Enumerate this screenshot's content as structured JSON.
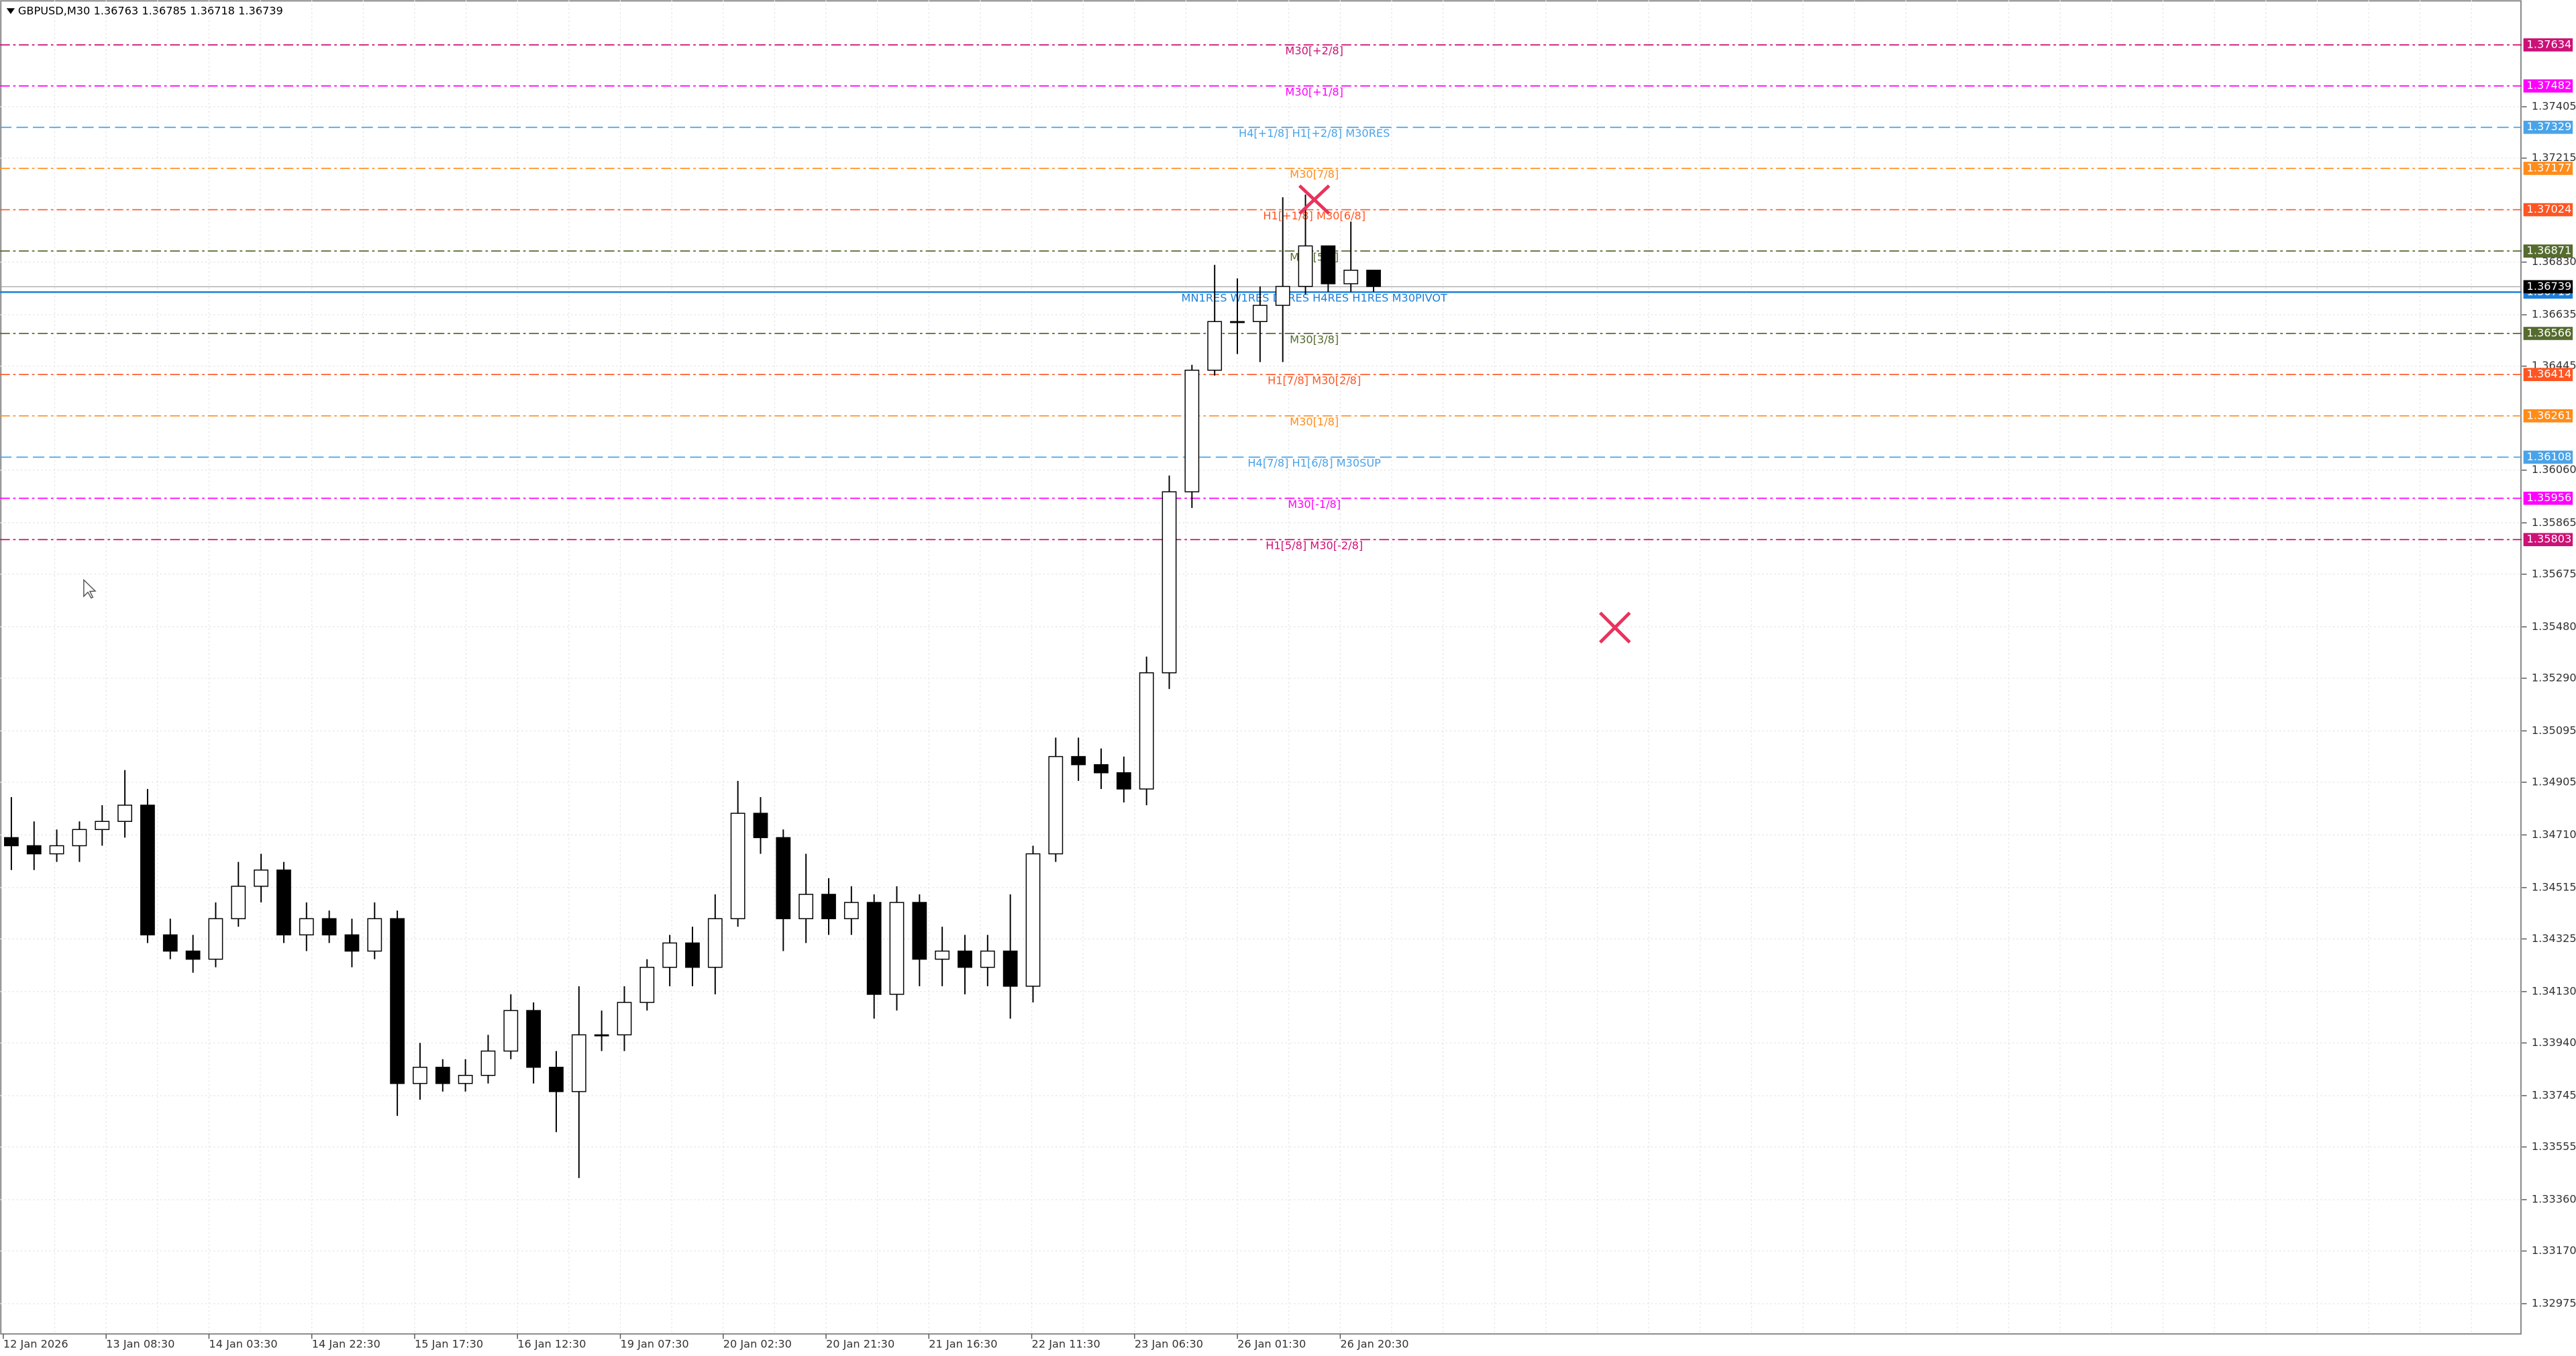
{
  "chart_data": {
    "type": "candlestick",
    "title": "GBPUSD,M30  1.36763 1.36785 1.36718 1.36739",
    "current_price": 1.36739,
    "ylim": [
      1.32863,
      1.378
    ],
    "yticks": [
      1.37405,
      1.37215,
      {
        "value": 1.3683,
        "label": "1.36830"
      },
      1.36635,
      1.36445,
      {
        "value": 1.3606,
        "label": "1.36060"
      },
      1.35865,
      1.35675,
      {
        "value": 1.3548,
        "label": "1.35480"
      },
      {
        "value": 1.3529,
        "label": "1.35290"
      },
      1.35095,
      1.34905,
      {
        "value": 1.3471,
        "label": "1.34710"
      },
      1.34515,
      1.34325,
      {
        "value": 1.3413,
        "label": "1.34130"
      },
      {
        "value": 1.3394,
        "label": "1.33940"
      },
      1.33745,
      1.33555,
      {
        "value": 1.3336,
        "label": "1.33360"
      },
      {
        "value": 1.3317,
        "label": "1.33170"
      },
      1.32975
    ],
    "xticks": [
      "12 Jan 2026",
      "13 Jan 08:30",
      "14 Jan 03:30",
      "14 Jan 22:30",
      "15 Jan 17:30",
      "16 Jan 12:30",
      "19 Jan 07:30",
      "20 Jan 02:30",
      "20 Jan 21:30",
      "21 Jan 16:30",
      "22 Jan 11:30",
      "23 Jan 06:30",
      "26 Jan 01:30",
      "26 Jan 20:30"
    ],
    "grid": true,
    "up_color": "#ffffff",
    "down_color": "#000000",
    "open": [
      1.347,
      1.3467,
      1.3464,
      1.3467,
      1.3473,
      1.3476,
      1.3482,
      1.3434,
      1.3428,
      1.3425,
      1.344,
      1.3452,
      1.3458,
      1.3434,
      1.344,
      1.3434,
      1.3428,
      1.344,
      1.3379,
      1.3385,
      1.3379,
      1.3382,
      1.3391,
      1.3406,
      1.3385,
      1.3376,
      1.3397,
      1.3397,
      1.3409,
      1.3422,
      1.3431,
      1.3422,
      1.344,
      1.3479,
      1.347,
      1.344,
      1.3449,
      1.344,
      1.3446,
      1.3412,
      1.3446,
      1.3425,
      1.3428,
      1.3422,
      1.3428,
      1.3415,
      1.3464,
      1.35,
      1.3497,
      1.3494,
      1.3488,
      1.3531,
      1.3598,
      1.3643,
      1.3661,
      1.3661,
      1.3667,
      1.3674,
      1.3689,
      1.3675,
      1.368
    ],
    "high": [
      1.3485,
      1.3476,
      1.3473,
      1.3476,
      1.3482,
      1.3495,
      1.3488,
      1.344,
      1.3434,
      1.3446,
      1.3461,
      1.3464,
      1.3461,
      1.3446,
      1.3443,
      1.344,
      1.3446,
      1.3443,
      1.3394,
      1.3388,
      1.3388,
      1.3397,
      1.3412,
      1.3409,
      1.3391,
      1.3415,
      1.3406,
      1.3415,
      1.3425,
      1.3434,
      1.3437,
      1.3449,
      1.3491,
      1.3485,
      1.3473,
      1.3464,
      1.3455,
      1.3452,
      1.3449,
      1.3452,
      1.3449,
      1.3437,
      1.3434,
      1.3434,
      1.3449,
      1.3467,
      1.3507,
      1.3507,
      1.3503,
      1.35,
      1.3537,
      1.3604,
      1.3645,
      1.3682,
      1.3677,
      1.3674,
      1.3707,
      1.3708,
      1.3689,
      1.3698,
      1.368
    ],
    "low": [
      1.3458,
      1.3458,
      1.3461,
      1.3461,
      1.3467,
      1.347,
      1.3431,
      1.3425,
      1.342,
      1.3422,
      1.3437,
      1.3446,
      1.3431,
      1.3428,
      1.3431,
      1.3422,
      1.3425,
      1.3367,
      1.3373,
      1.3376,
      1.3376,
      1.3379,
      1.3388,
      1.3379,
      1.3361,
      1.3344,
      1.3391,
      1.3391,
      1.3406,
      1.3415,
      1.3415,
      1.3412,
      1.3437,
      1.3464,
      1.3428,
      1.3431,
      1.3434,
      1.3434,
      1.3403,
      1.3406,
      1.3415,
      1.3415,
      1.3412,
      1.3415,
      1.3403,
      1.3409,
      1.3461,
      1.3491,
      1.3488,
      1.3483,
      1.3482,
      1.3525,
      1.3592,
      1.3641,
      1.3649,
      1.3646,
      1.3646,
      1.3671,
      1.3672,
      1.3672,
      1.3672
    ],
    "close": [
      1.3467,
      1.3464,
      1.3467,
      1.3473,
      1.3476,
      1.3482,
      1.3434,
      1.3428,
      1.3425,
      1.344,
      1.3452,
      1.3458,
      1.3434,
      1.344,
      1.3434,
      1.3428,
      1.344,
      1.3379,
      1.3385,
      1.3379,
      1.3382,
      1.3391,
      1.3406,
      1.3385,
      1.3376,
      1.3397,
      1.3397,
      1.3409,
      1.3422,
      1.3431,
      1.3422,
      1.344,
      1.3479,
      1.347,
      1.344,
      1.3449,
      1.344,
      1.3446,
      1.3412,
      1.3446,
      1.3425,
      1.3428,
      1.3422,
      1.3428,
      1.3415,
      1.3464,
      1.35,
      1.3497,
      1.3494,
      1.3488,
      1.3531,
      1.3598,
      1.3643,
      1.3661,
      1.3661,
      1.3667,
      1.3674,
      1.3689,
      1.3675,
      1.368,
      1.3674
    ],
    "levels": [
      {
        "value": 1.37634,
        "label": "M30[+2/8]",
        "color": "#cc1177",
        "style": "dashdot"
      },
      {
        "value": 1.37482,
        "label": "M30[+1/8]",
        "color": "#ff00ff",
        "style": "dashdot"
      },
      {
        "value": 1.37329,
        "label": "H4[+1/8] H1[+2/8] M30RES",
        "color": "#4aa3e8",
        "style": "dash"
      },
      {
        "value": 1.37177,
        "label": "M30[7/8]",
        "color": "#ff8c1a",
        "style": "dashdot"
      },
      {
        "value": 1.37024,
        "label": "H1[+1/8] M30[6/8]",
        "color": "#ff5522",
        "style": "dashdot"
      },
      {
        "value": 1.36871,
        "label": "M30[5/8]",
        "color": "#556b2f",
        "style": "dashdot"
      },
      {
        "value": 1.36719,
        "label": "MN1RES W1RES D1RES H4RES H1RES M30PIVOT",
        "color": "#1e7fd8",
        "style": "solid"
      },
      {
        "value": 1.36566,
        "label": "M30[3/8]",
        "color": "#556b2f",
        "style": "dashdot"
      },
      {
        "value": 1.36414,
        "label": "H1[7/8] M30[2/8]",
        "color": "#ff5522",
        "style": "dashdot"
      },
      {
        "value": 1.36261,
        "label": "M30[1/8]",
        "color": "#ff8c1a",
        "style": "dashdot"
      },
      {
        "value": 1.36108,
        "label": "H4[7/8] H1[6/8] M30SUP",
        "color": "#4aa3e8",
        "style": "dash"
      },
      {
        "value": 1.35956,
        "label": "M30[-1/8]",
        "color": "#ff00ff",
        "style": "dashdot"
      },
      {
        "value": 1.35803,
        "label": "H1[5/8] M30[-2/8]",
        "color": "#cc1177",
        "style": "dashdot"
      }
    ]
  }
}
